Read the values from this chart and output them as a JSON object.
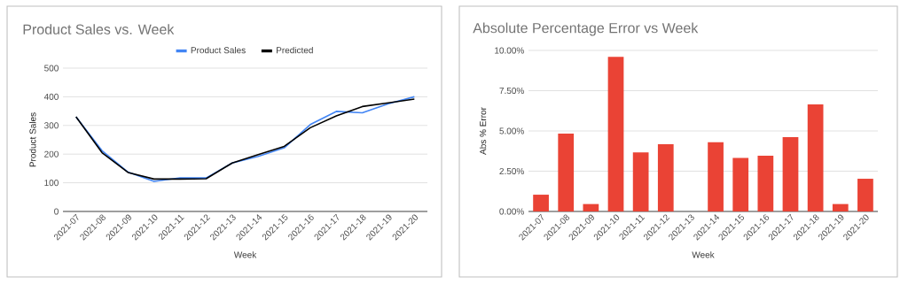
{
  "chart_data": [
    {
      "type": "line",
      "title": "Product Sales vs. Week",
      "xlabel": "Week",
      "ylabel": "Product Sales",
      "categories": [
        "2021-07",
        "2021-08",
        "2021-09",
        "2021-10",
        "2021-11",
        "2021-12",
        "2021-13",
        "2021-14",
        "2021-15",
        "2021-16",
        "2021-17",
        "2021-18",
        "2021-19",
        "2021-20"
      ],
      "series": [
        {
          "name": "Product Sales",
          "color": "#4285f4",
          "values": [
            330,
            212,
            137,
            105,
            117,
            117,
            169,
            192,
            222,
            303,
            349,
            344,
            376,
            400
          ]
        },
        {
          "name": "Predicted",
          "color": "#000000",
          "values": [
            330,
            205,
            136,
            113,
            113,
            114,
            169,
            198,
            227,
            292,
            333,
            366,
            379,
            392
          ]
        }
      ],
      "ylim": [
        0,
        500
      ],
      "yticks": [
        0,
        100,
        200,
        300,
        400,
        500
      ],
      "grid": "y",
      "legend": "top"
    },
    {
      "type": "bar",
      "title": "Absolute Percentage Error vs Week",
      "xlabel": "Week",
      "ylabel": "Abs % Error",
      "categories": [
        "2021-07",
        "2021-08",
        "2021-09",
        "2021-10",
        "2021-11",
        "2021-12",
        "2021-13",
        "2021-14",
        "2021-15",
        "2021-16",
        "2021-17",
        "2021-18",
        "2021-19",
        "2021-20"
      ],
      "values": [
        1.04,
        4.83,
        0.46,
        9.6,
        3.67,
        4.17,
        0,
        4.3,
        3.33,
        3.46,
        4.61,
        6.65,
        0.46,
        2.03
      ],
      "color": "#ea4335",
      "ylim": [
        0,
        10
      ],
      "yticks": [
        {
          "value": 0,
          "label": "0.00%"
        },
        {
          "value": 2.5,
          "label": "2.50%"
        },
        {
          "value": 5,
          "label": "5.00%"
        },
        {
          "value": 7.5,
          "label": "7.50%"
        },
        {
          "value": 10,
          "label": "10.00%"
        }
      ],
      "grid": "y"
    }
  ]
}
